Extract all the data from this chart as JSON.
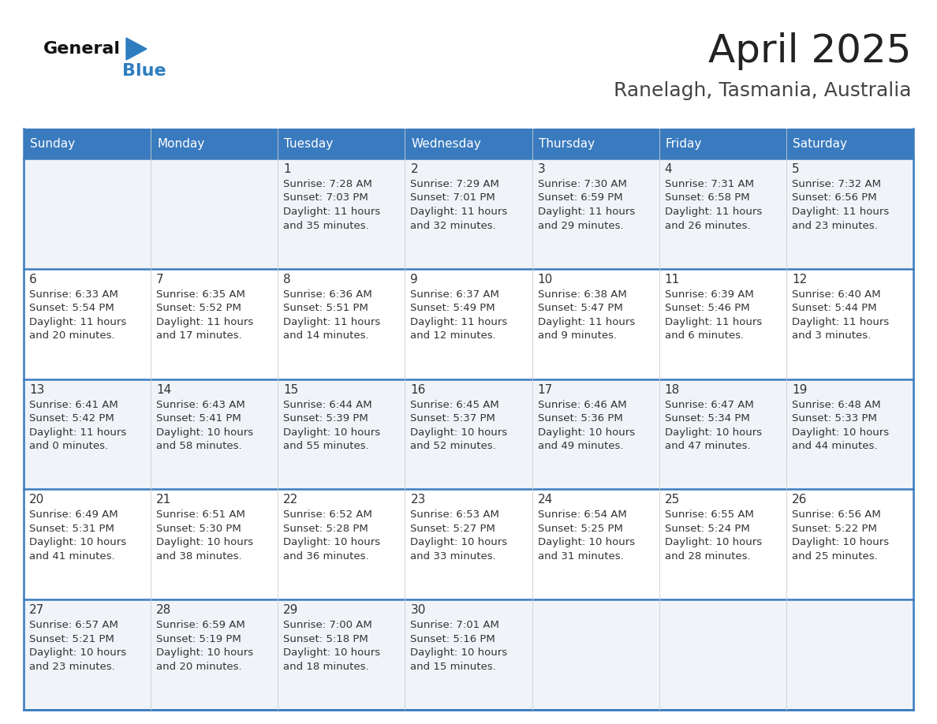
{
  "title": "April 2025",
  "subtitle": "Ranelagh, Tasmania, Australia",
  "header_color": "#3a7bbf",
  "header_text_color": "#ffffff",
  "cell_bg_odd": "#f0f4f8",
  "cell_bg_even": "#ffffff",
  "day_headers": [
    "Sunday",
    "Monday",
    "Tuesday",
    "Wednesday",
    "Thursday",
    "Friday",
    "Saturday"
  ],
  "title_color": "#222222",
  "subtitle_color": "#444444",
  "line_color": "#3a7bbf",
  "cell_text_color": "#333333",
  "logo_black": "#111111",
  "logo_blue": "#2e7dbf",
  "days": [
    {
      "day": null,
      "col": 0,
      "row": 0
    },
    {
      "day": null,
      "col": 1,
      "row": 0
    },
    {
      "day": 1,
      "col": 2,
      "row": 0,
      "sunrise": "7:28 AM",
      "sunset": "7:03 PM",
      "daylight": "11 hours and 35 minutes."
    },
    {
      "day": 2,
      "col": 3,
      "row": 0,
      "sunrise": "7:29 AM",
      "sunset": "7:01 PM",
      "daylight": "11 hours and 32 minutes."
    },
    {
      "day": 3,
      "col": 4,
      "row": 0,
      "sunrise": "7:30 AM",
      "sunset": "6:59 PM",
      "daylight": "11 hours and 29 minutes."
    },
    {
      "day": 4,
      "col": 5,
      "row": 0,
      "sunrise": "7:31 AM",
      "sunset": "6:58 PM",
      "daylight": "11 hours and 26 minutes."
    },
    {
      "day": 5,
      "col": 6,
      "row": 0,
      "sunrise": "7:32 AM",
      "sunset": "6:56 PM",
      "daylight": "11 hours and 23 minutes."
    },
    {
      "day": 6,
      "col": 0,
      "row": 1,
      "sunrise": "6:33 AM",
      "sunset": "5:54 PM",
      "daylight": "11 hours and 20 minutes."
    },
    {
      "day": 7,
      "col": 1,
      "row": 1,
      "sunrise": "6:35 AM",
      "sunset": "5:52 PM",
      "daylight": "11 hours and 17 minutes."
    },
    {
      "day": 8,
      "col": 2,
      "row": 1,
      "sunrise": "6:36 AM",
      "sunset": "5:51 PM",
      "daylight": "11 hours and 14 minutes."
    },
    {
      "day": 9,
      "col": 3,
      "row": 1,
      "sunrise": "6:37 AM",
      "sunset": "5:49 PM",
      "daylight": "11 hours and 12 minutes."
    },
    {
      "day": 10,
      "col": 4,
      "row": 1,
      "sunrise": "6:38 AM",
      "sunset": "5:47 PM",
      "daylight": "11 hours and 9 minutes."
    },
    {
      "day": 11,
      "col": 5,
      "row": 1,
      "sunrise": "6:39 AM",
      "sunset": "5:46 PM",
      "daylight": "11 hours and 6 minutes."
    },
    {
      "day": 12,
      "col": 6,
      "row": 1,
      "sunrise": "6:40 AM",
      "sunset": "5:44 PM",
      "daylight": "11 hours and 3 minutes."
    },
    {
      "day": 13,
      "col": 0,
      "row": 2,
      "sunrise": "6:41 AM",
      "sunset": "5:42 PM",
      "daylight": "11 hours and 0 minutes."
    },
    {
      "day": 14,
      "col": 1,
      "row": 2,
      "sunrise": "6:43 AM",
      "sunset": "5:41 PM",
      "daylight": "10 hours and 58 minutes."
    },
    {
      "day": 15,
      "col": 2,
      "row": 2,
      "sunrise": "6:44 AM",
      "sunset": "5:39 PM",
      "daylight": "10 hours and 55 minutes."
    },
    {
      "day": 16,
      "col": 3,
      "row": 2,
      "sunrise": "6:45 AM",
      "sunset": "5:37 PM",
      "daylight": "10 hours and 52 minutes."
    },
    {
      "day": 17,
      "col": 4,
      "row": 2,
      "sunrise": "6:46 AM",
      "sunset": "5:36 PM",
      "daylight": "10 hours and 49 minutes."
    },
    {
      "day": 18,
      "col": 5,
      "row": 2,
      "sunrise": "6:47 AM",
      "sunset": "5:34 PM",
      "daylight": "10 hours and 47 minutes."
    },
    {
      "day": 19,
      "col": 6,
      "row": 2,
      "sunrise": "6:48 AM",
      "sunset": "5:33 PM",
      "daylight": "10 hours and 44 minutes."
    },
    {
      "day": 20,
      "col": 0,
      "row": 3,
      "sunrise": "6:49 AM",
      "sunset": "5:31 PM",
      "daylight": "10 hours and 41 minutes."
    },
    {
      "day": 21,
      "col": 1,
      "row": 3,
      "sunrise": "6:51 AM",
      "sunset": "5:30 PM",
      "daylight": "10 hours and 38 minutes."
    },
    {
      "day": 22,
      "col": 2,
      "row": 3,
      "sunrise": "6:52 AM",
      "sunset": "5:28 PM",
      "daylight": "10 hours and 36 minutes."
    },
    {
      "day": 23,
      "col": 3,
      "row": 3,
      "sunrise": "6:53 AM",
      "sunset": "5:27 PM",
      "daylight": "10 hours and 33 minutes."
    },
    {
      "day": 24,
      "col": 4,
      "row": 3,
      "sunrise": "6:54 AM",
      "sunset": "5:25 PM",
      "daylight": "10 hours and 31 minutes."
    },
    {
      "day": 25,
      "col": 5,
      "row": 3,
      "sunrise": "6:55 AM",
      "sunset": "5:24 PM",
      "daylight": "10 hours and 28 minutes."
    },
    {
      "day": 26,
      "col": 6,
      "row": 3,
      "sunrise": "6:56 AM",
      "sunset": "5:22 PM",
      "daylight": "10 hours and 25 minutes."
    },
    {
      "day": 27,
      "col": 0,
      "row": 4,
      "sunrise": "6:57 AM",
      "sunset": "5:21 PM",
      "daylight": "10 hours and 23 minutes."
    },
    {
      "day": 28,
      "col": 1,
      "row": 4,
      "sunrise": "6:59 AM",
      "sunset": "5:19 PM",
      "daylight": "10 hours and 20 minutes."
    },
    {
      "day": 29,
      "col": 2,
      "row": 4,
      "sunrise": "7:00 AM",
      "sunset": "5:18 PM",
      "daylight": "10 hours and 18 minutes."
    },
    {
      "day": 30,
      "col": 3,
      "row": 4,
      "sunrise": "7:01 AM",
      "sunset": "5:16 PM",
      "daylight": "10 hours and 15 minutes."
    },
    {
      "day": null,
      "col": 4,
      "row": 4
    },
    {
      "day": null,
      "col": 5,
      "row": 4
    },
    {
      "day": null,
      "col": 6,
      "row": 4
    }
  ]
}
